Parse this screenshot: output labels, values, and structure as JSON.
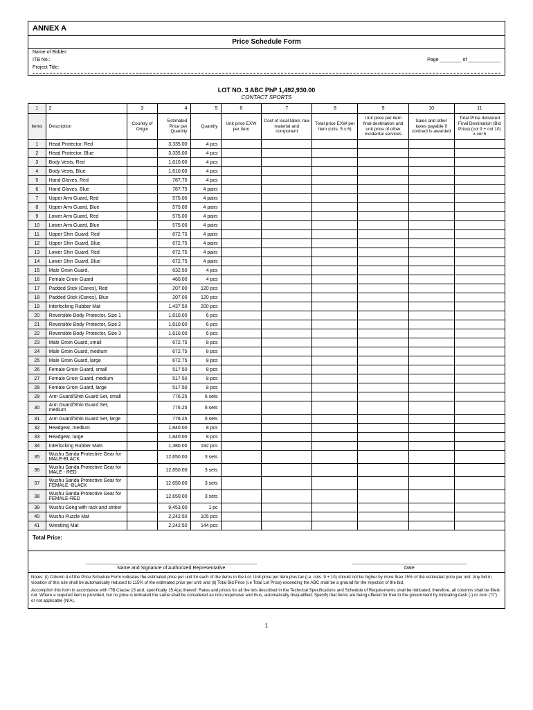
{
  "annex": "ANNEX A",
  "form_title": "Price Schedule Form",
  "header": {
    "bidder_label": "Name of Bidder:",
    "itb_label": "ITB No.:",
    "page_label": "Page ________ of ____________",
    "project_label": "Project Title:"
  },
  "lot": {
    "title": "LOT NO. 3        ABC PhP 1,492,930.00",
    "subtitle": "CONTACT SPORTS"
  },
  "columns_num": [
    "1",
    "2",
    "3",
    "4",
    "5",
    "6",
    "7",
    "8",
    "9",
    "10",
    "11"
  ],
  "columns_txt": [
    "Items",
    "Description",
    "Country of Origin",
    "Estimated Price per Quantity",
    "Quantity",
    "Unit price EXW per item",
    "Cost of local labor, raw material and component",
    "Total price EXW per item (cols. 5 x 6)",
    "Unit price per item final destination and unit price of other incidental services",
    "Sales and other taxes payable if contract is awarded",
    "Total Price delivered Final Destination (Bid Price) (col 9 + col 10) x col 5"
  ],
  "rows": [
    {
      "n": "1",
      "d": "Head Protector, Red",
      "p": "3,335.00",
      "q": "4 pcs"
    },
    {
      "n": "2",
      "d": "Head Protector, Blue",
      "p": "3,335.00",
      "q": "4 pcs"
    },
    {
      "n": "3",
      "d": "Body Vests, Red",
      "p": "1,610.00",
      "q": "4 pcs"
    },
    {
      "n": "4",
      "d": "Body Vests, Blue",
      "p": "1,610.00",
      "q": "4 pcs"
    },
    {
      "n": "5",
      "d": "Hand Gloves, Red",
      "p": "787.75",
      "q": "4 pcs"
    },
    {
      "n": "6",
      "d": "Hand Gloves, Blue",
      "p": "787.75",
      "q": "4 pairs"
    },
    {
      "n": "7",
      "d": "Upper Arm Guard, Red",
      "p": "575.00",
      "q": "4 pairs"
    },
    {
      "n": "8",
      "d": "Upper Arm Guard, Blue",
      "p": "575.00",
      "q": "4 pairs"
    },
    {
      "n": "9",
      "d": "Lower Arm Guard, Red",
      "p": "575.00",
      "q": "4 pairs"
    },
    {
      "n": "10",
      "d": "Lower Arm Guard, Blue",
      "p": "575.00",
      "q": "4 pairs"
    },
    {
      "n": "11",
      "d": "Upper Shin Guard, Red",
      "p": "672.75",
      "q": "4 pairs"
    },
    {
      "n": "12",
      "d": "Upper Shin Guard, Blue",
      "p": "672.75",
      "q": "4 pairs"
    },
    {
      "n": "13",
      "d": "Lower Shin Guard, Red",
      "p": "672.75",
      "q": "4 pairs"
    },
    {
      "n": "14",
      "d": "Lower Shin Guard, Blue",
      "p": "672.75",
      "q": "4 pairs"
    },
    {
      "n": "15",
      "d": "Male Groin Guard,",
      "p": "632.50",
      "q": "4 pcs"
    },
    {
      "n": "16",
      "d": "Female Groin Guard",
      "p": "460.00",
      "q": "4 pcs"
    },
    {
      "n": "17",
      "d": "Padded Stick (Canes), Red",
      "p": "207.00",
      "q": "120 pcs"
    },
    {
      "n": "18",
      "d": "Padded Stick (Canes), Blue",
      "p": "207.00",
      "q": "120 pcs"
    },
    {
      "n": "19",
      "d": "Interlocking Rubber Mat",
      "p": "1,437.50",
      "q": "200 pcs"
    },
    {
      "n": "20",
      "d": "Reversible Body Protector, Size 1",
      "p": "1,610.00",
      "q": "6 pcs"
    },
    {
      "n": "21",
      "d": "Reversible Body Protector, Size 2",
      "p": "1,610.00",
      "q": "6 pcs"
    },
    {
      "n": "22",
      "d": "Reversible Body Protector, Size 3",
      "p": "1,610.00",
      "q": "6 pcs"
    },
    {
      "n": "23",
      "d": "Male Groin Guard, small",
      "p": "672.75",
      "q": "8 pcs"
    },
    {
      "n": "24",
      "d": "Male Groin Guard, medium",
      "p": "672.75",
      "q": "8 pcs"
    },
    {
      "n": "25",
      "d": "Male Groin Guard, large",
      "p": "672.75",
      "q": "8 pcs"
    },
    {
      "n": "26",
      "d": "Female Groin Guard, small",
      "p": "517.50",
      "q": "8 pcs"
    },
    {
      "n": "27",
      "d": "Female Groin Guard, medium",
      "p": "517.50",
      "q": "8 pcs"
    },
    {
      "n": "28",
      "d": "Female Groin Guard, large",
      "p": "517.50",
      "q": "8 pcs"
    },
    {
      "n": "29",
      "d": "Arm Guard/Shin Guard Set, small",
      "p": "776.25",
      "q": "6 sets"
    },
    {
      "n": "30",
      "d": "Arm Guard/Shin Guard Set, medium",
      "p": "776.25",
      "q": "6 sets"
    },
    {
      "n": "31",
      "d": "Arm Guard/Shin Guard Set, large",
      "p": "776.25",
      "q": "6 sets"
    },
    {
      "n": "32",
      "d": "Headgear, medium",
      "p": "1,840.00",
      "q": "8 pcs"
    },
    {
      "n": "33",
      "d": "Headgear, large",
      "p": "1,840.00",
      "q": "8 pcs"
    },
    {
      "n": "34",
      "d": "Interlocking Rubber Mats",
      "p": "1,380.00",
      "q": "192 pcs"
    },
    {
      "n": "35",
      "d": "Wushu Sanda Protective Gear for MALE-BLACK",
      "p": "12,650.00",
      "q": "3 sets"
    },
    {
      "n": "36",
      "d": "Wushu Sanda Protective Gear for MALE - RED",
      "p": "12,650.00",
      "q": "3 sets"
    },
    {
      "n": "37",
      "d": "Wushu Sanda Protective Gear for FEMALE -BLACK",
      "p": "12,650.00",
      "q": "3 sets"
    },
    {
      "n": "38",
      "d": "Wushu Sanda Protective Gear for FEMALE-RED",
      "p": "12,650.00",
      "q": "3 sets"
    },
    {
      "n": "39",
      "d": "Wushu Gong  with rack and striker",
      "p": "9,453.00",
      "q": "1 pc"
    },
    {
      "n": "40",
      "d": "Wushu Puzzle Mat",
      "p": "2,242.50",
      "q": "105 pcs"
    },
    {
      "n": "41",
      "d": "Wrestling Mat",
      "p": "2,242.50",
      "q": "144 pcs"
    }
  ],
  "total_label": "Total Price:",
  "sig": {
    "rep": "Name and Signature of Authorized Representative",
    "date": "Date"
  },
  "notes": {
    "n1": "Notes: (i) Column 4 of the Price Schedule Form indicates the estimated price per unit for each of the items in the Lot. Unit price per item plus tax (i.e. cols. 9 + 10) should not be higher by more than 15% of the estimated price per unit. Any bid in violation of this rule shall be automatically reduced to 115% of the estimated price per unit; and (ii) Total Bid Price (i.e Total Lot Price) exceeding the ABC shall be a ground for the rejection of the bid.",
    "n2": "Accomplish this form in accordance with ITB Clause 15 and, specifically 15.4(a) thereof.  Rates and prices for all the lots described in the Technical Specifications and Schedule of Requirements shall be indicated; therefore, all columns shall be filled-out.  Where a required item is provided, but no price is indicated the same shall be considered as non-responsive and thus, automatically disqualified.  Specify that items are being offered for free to the government by indicating dash (-) or zero (\"0\") or not applicable (N/A)."
  },
  "page_number": "1"
}
